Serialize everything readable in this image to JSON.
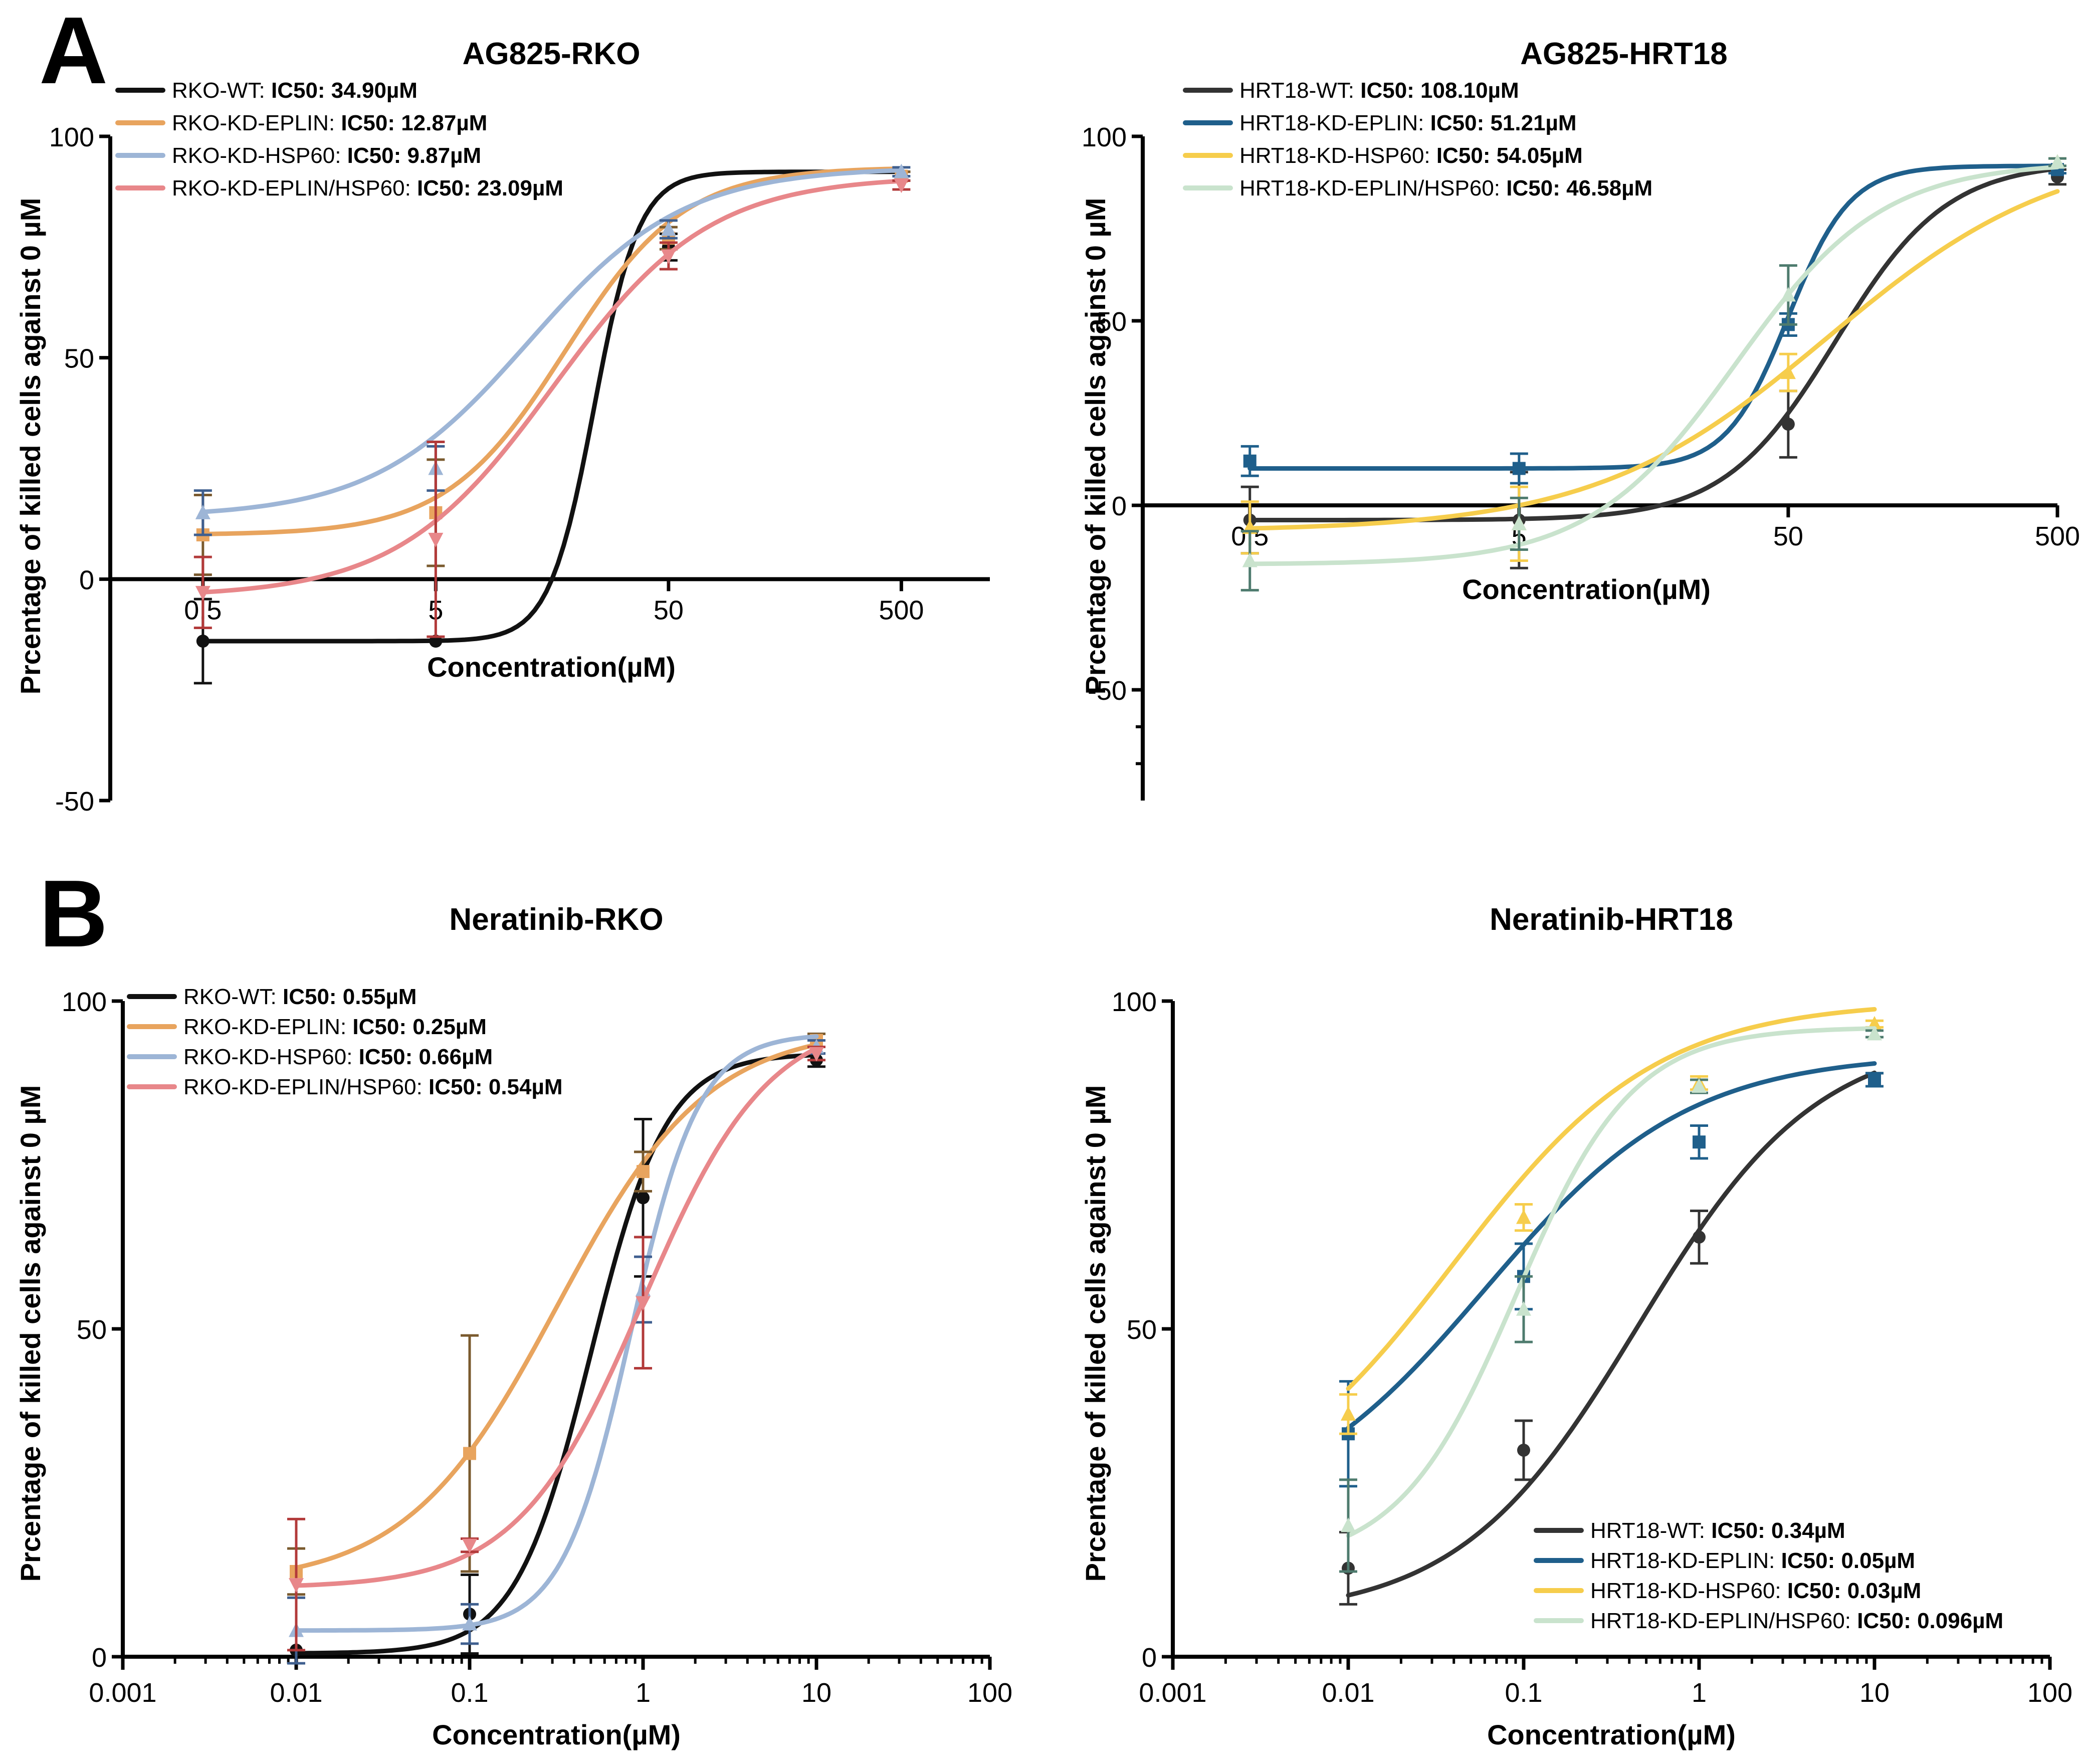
{
  "panel_labels": [
    "A",
    "B"
  ],
  "chart_data": [
    {
      "id": "ag825-rko",
      "panel": "A",
      "type": "line",
      "x_scale": "log",
      "title": "AG825-RKO",
      "xlabel": "Concentration(µM)",
      "ylabel": "Prcentage of killed cells against 0 µM",
      "x_ticks": [
        0.5,
        5,
        50,
        500
      ],
      "x_tick_labels": [
        "0.5",
        "5",
        "50",
        "500"
      ],
      "x_range": [
        0.2,
        1200
      ],
      "ylim": [
        -50,
        100
      ],
      "y_ticks": [
        -50,
        0,
        50,
        100
      ],
      "y_tick_labels": [
        "-50",
        "0",
        "50",
        "100"
      ],
      "x_axis_at_zero": true,
      "legend_position": "top-left",
      "series": [
        {
          "name": "RKO-WT: ",
          "ic50": "IC50: 34.90µM",
          "color": "#111111",
          "marker": "circle",
          "x": [
            0.5,
            5,
            50,
            500
          ],
          "y": [
            -14,
            -14,
            75,
            91
          ],
          "err": [
            9.5,
            0,
            3,
            1
          ],
          "fit": {
            "bottom": -14,
            "top": 92,
            "ec50": 24,
            "hill": 4.5
          }
        },
        {
          "name": "RKO-KD-EPLIN: ",
          "ic50": "IC50: 12.87µM",
          "color": "#E8A45E",
          "marker": "square",
          "x": [
            0.5,
            5,
            50,
            500
          ],
          "y": [
            10,
            15,
            77,
            91
          ],
          "err": [
            9,
            12,
            2.5,
            1
          ],
          "fit": {
            "bottom": 10,
            "top": 93,
            "ec50": 18,
            "hill": 1.7
          }
        },
        {
          "name": "RKO-KD-HSP60: ",
          "ic50": "IC50: 9.87µM",
          "color": "#9DB5D6",
          "marker": "triangle-up",
          "x": [
            0.5,
            5,
            50,
            500
          ],
          "y": [
            15,
            25,
            79,
            92
          ],
          "err": [
            5,
            5,
            2,
            1
          ],
          "fit": {
            "bottom": 14,
            "top": 93,
            "ec50": 12.5,
            "hill": 1.3
          }
        },
        {
          "name": "RKO-KD-EPLIN/HSP60: ",
          "ic50": "IC50: 23.09µM",
          "color": "#E8878A",
          "marker": "triangle-down",
          "x": [
            0.5,
            5,
            50,
            500
          ],
          "y": [
            -3,
            9,
            73,
            89
          ],
          "err": [
            8,
            22,
            3,
            1
          ],
          "fit": {
            "bottom": -4,
            "top": 91,
            "ec50": 16,
            "hill": 1.3
          }
        }
      ]
    },
    {
      "id": "ag825-hrt18",
      "panel": "A",
      "type": "line",
      "x_scale": "log",
      "title": "AG825-HRT18",
      "xlabel": "Concentration(µM)",
      "ylabel": "Prcentage of killed cells against 0 µM",
      "x_ticks": [
        0.5,
        5,
        50,
        500
      ],
      "x_tick_labels": [
        "0.5",
        "5",
        "50",
        "500"
      ],
      "x_range": [
        0.2,
        500
      ],
      "ylim": [
        -80,
        100
      ],
      "y_ticks": [
        -50,
        0,
        50,
        100
      ],
      "y_tick_labels": [
        "-50",
        "0",
        "50",
        "100"
      ],
      "x_axis_at_zero": true,
      "legend_position": "top-left",
      "series": [
        {
          "name": "HRT18-WT: ",
          "ic50": "IC50: 108.10µM",
          "color": "#333333",
          "marker": "circle",
          "x": [
            0.5,
            5,
            50,
            500
          ],
          "y": [
            -4,
            -4,
            22,
            89
          ],
          "err": [
            9,
            13,
            9,
            2
          ],
          "fit": {
            "bottom": -4,
            "top": 93,
            "ec50": 75,
            "hill": 2.1
          }
        },
        {
          "name": "HRT18-KD-EPLIN: ",
          "ic50": "IC50: 51.21µM",
          "color": "#1F5F8B",
          "marker": "square",
          "x": [
            0.5,
            5,
            50,
            500
          ],
          "y": [
            12,
            10,
            49,
            91
          ],
          "err": [
            4,
            4,
            3,
            1
          ],
          "fit": {
            "bottom": 10,
            "top": 92,
            "ec50": 50,
            "hill": 3.8
          }
        },
        {
          "name": "HRT18-KD-HSP60: ",
          "ic50": "IC50: 54.05µM",
          "color": "#F6CD4C",
          "marker": "triangle-up",
          "x": [
            0.5,
            5,
            50,
            500
          ],
          "y": [
            -6,
            -5,
            36,
            93
          ],
          "err": [
            7,
            10,
            5,
            1
          ],
          "fit": {
            "bottom": -7,
            "top": 98,
            "ec50": 70,
            "hill": 1.0
          }
        },
        {
          "name": "HRT18-KD-EPLIN/HSP60: ",
          "ic50": "IC50: 46.58µM",
          "color": "#C9E3CD",
          "marker": "triangle-up",
          "x": [
            0.5,
            5,
            50,
            500
          ],
          "y": [
            -15,
            -5,
            57,
            93
          ],
          "err": [
            8,
            7,
            8,
            1
          ],
          "fit": {
            "bottom": -16,
            "top": 93,
            "ec50": 32,
            "hill": 1.6
          }
        }
      ]
    },
    {
      "id": "neratinib-rko",
      "panel": "B",
      "type": "line",
      "x_scale": "log",
      "title": "Neratinib-RKO",
      "xlabel": "Concentration(µM)",
      "ylabel": "Prcentage of killed cells against 0 µM",
      "x_ticks": [
        0.001,
        0.01,
        0.1,
        1,
        10,
        100
      ],
      "x_tick_labels": [
        "0.001",
        "0.01",
        "0.1",
        "1",
        "10",
        "100"
      ],
      "x_range": [
        0.001,
        100
      ],
      "ylim": [
        0,
        100
      ],
      "y_ticks": [
        0,
        50,
        100
      ],
      "y_tick_labels": [
        "0",
        "50",
        "100"
      ],
      "x_axis_at_zero": false,
      "legend_position": "top-left",
      "series": [
        {
          "name": "RKO-WT: ",
          "ic50": "IC50: 0.55µM",
          "color": "#111111",
          "marker": "circle",
          "x": [
            0.01,
            0.1,
            1,
            10
          ],
          "y": [
            1,
            6.5,
            70,
            91
          ],
          "err": [
            0,
            6,
            12,
            1
          ],
          "fit": {
            "bottom": 0.5,
            "top": 92,
            "ec50": 0.5,
            "hill": 2.0
          }
        },
        {
          "name": "RKO-KD-EPLIN: ",
          "ic50": "IC50: 0.25µM",
          "color": "#E8A45E",
          "marker": "square",
          "x": [
            0.01,
            0.1,
            1,
            10
          ],
          "y": [
            13,
            31,
            74,
            94
          ],
          "err": [
            3.5,
            18,
            3,
            1
          ],
          "fit": {
            "bottom": 11,
            "top": 96,
            "ec50": 0.32,
            "hill": 1.0
          }
        },
        {
          "name": "RKO-KD-HSP60: ",
          "ic50": "IC50: 0.66µM",
          "color": "#9DB5D6",
          "marker": "triangle-up",
          "x": [
            0.01,
            0.1,
            1,
            10
          ],
          "y": [
            4,
            5,
            56,
            93
          ],
          "err": [
            5,
            3,
            5,
            1
          ],
          "fit": {
            "bottom": 4,
            "top": 95,
            "ec50": 0.85,
            "hill": 2.2
          }
        },
        {
          "name": "RKO-KD-EPLIN/HSP60: ",
          "ic50": "IC50: 0.54µM",
          "color": "#E8878A",
          "marker": "triangle-down",
          "x": [
            0.01,
            0.1,
            1,
            10
          ],
          "y": [
            11,
            17,
            54,
            92
          ],
          "err": [
            10,
            1,
            10,
            1
          ],
          "fit": {
            "bottom": 10.5,
            "top": 98,
            "ec50": 1.0,
            "hill": 1.2
          }
        }
      ]
    },
    {
      "id": "neratinib-hrt18",
      "panel": "B",
      "type": "line",
      "x_scale": "log",
      "title": "Neratinib-HRT18",
      "xlabel": "Concentration(µM)",
      "ylabel": "Prcentage of killed cells against 0 µM",
      "x_ticks": [
        0.001,
        0.01,
        0.1,
        1,
        10,
        100
      ],
      "x_tick_labels": [
        "0.001",
        "0.01",
        "0.1",
        "1",
        "10",
        "100"
      ],
      "x_range": [
        0.001,
        100
      ],
      "ylim": [
        0,
        100
      ],
      "y_ticks": [
        0,
        50,
        100
      ],
      "y_tick_labels": [
        "0",
        "50",
        "100"
      ],
      "x_axis_at_zero": false,
      "legend_position": "bottom-right",
      "series": [
        {
          "name": "HRT18-WT: ",
          "ic50": "IC50: 0.34µM",
          "color": "#333333",
          "marker": "circle",
          "x": [
            0.01,
            0.1,
            1,
            10
          ],
          "y": [
            13.5,
            31.5,
            64,
            88
          ],
          "err": [
            5.5,
            4.5,
            4,
            1
          ],
          "fit": {
            "bottom": 6,
            "top": 95,
            "ec50": 0.45,
            "hill": 0.85
          }
        },
        {
          "name": "HRT18-KD-EPLIN: ",
          "ic50": "IC50: 0.05µM",
          "color": "#1F5F8B",
          "marker": "square",
          "x": [
            0.01,
            0.1,
            1,
            10
          ],
          "y": [
            34,
            58,
            78.5,
            88
          ],
          "err": [
            8,
            5,
            2.5,
            1
          ],
          "fit": {
            "bottom": 20,
            "top": 92,
            "ec50": 0.06,
            "hill": 0.75
          }
        },
        {
          "name": "HRT18-KD-HSP60: ",
          "ic50": "IC50: 0.03µM",
          "color": "#F6CD4C",
          "marker": "triangle-up",
          "x": [
            0.01,
            0.1,
            1,
            10
          ],
          "y": [
            37,
            67,
            87.5,
            96.5
          ],
          "err": [
            3,
            2,
            1,
            0.5
          ],
          "fit": {
            "bottom": 20,
            "top": 100,
            "ec50": 0.04,
            "hill": 0.75
          }
        },
        {
          "name": "HRT18-KD-EPLIN/HSP60: ",
          "ic50": "IC50: 0.096µM",
          "color": "#C9E3CD",
          "marker": "triangle-up",
          "x": [
            0.01,
            0.1,
            1,
            10
          ],
          "y": [
            20,
            53,
            87,
            95
          ],
          "err": [
            7,
            5,
            1,
            0.5
          ],
          "fit": {
            "bottom": 14,
            "top": 96,
            "ec50": 0.09,
            "hill": 1.3
          }
        }
      ]
    }
  ]
}
